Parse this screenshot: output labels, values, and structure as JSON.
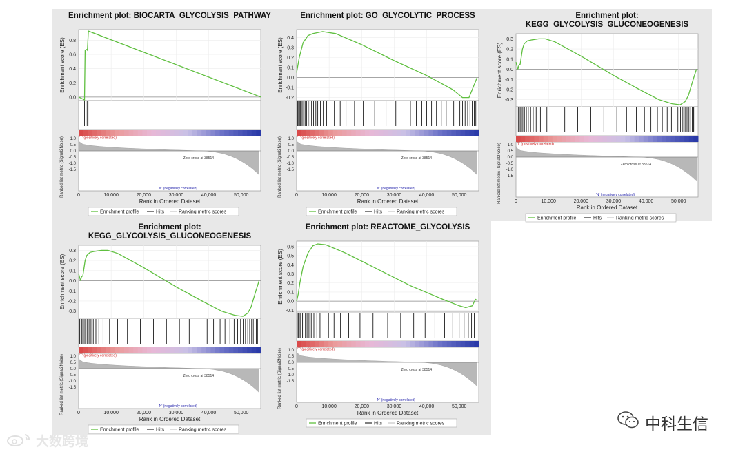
{
  "common": {
    "xlabel": "Rank in Ordered Dataset",
    "ylabel_top": "Enrichment score (ES)",
    "ylabel_bottom": "Ranked list metric (Signal2Noise)",
    "pos_label": "'T' (positively correlated)",
    "neg_label": "'N' (negatively correlated)",
    "zero_cross": "Zero cross at 38514",
    "xticks": [
      "0",
      "10,000",
      "20,000",
      "30,000",
      "40,000",
      "50,000"
    ],
    "ytick_metric": [
      "1.0",
      "0.5",
      "0.0",
      "-0.5",
      "-1.0",
      "-1.5"
    ],
    "legend": [
      "Enrichment profile",
      "Hits",
      "Ranking metric scores"
    ],
    "colors": {
      "es_line": "#5fbf3f",
      "hits": "#000000",
      "metric": "#b8b8b8",
      "pos": "#cc2222",
      "neg": "#2222aa"
    }
  },
  "watermark": {
    "right": "中科生信",
    "left": "大数跨境"
  },
  "chart_data": [
    {
      "type": "line",
      "title_lines": [
        "Enrichment plot: BIOCARTA_GLYCOLYSIS_PATHWAY"
      ],
      "xlabel": "Rank in Ordered Dataset",
      "ylabel": "Enrichment score (ES)",
      "xlim": [
        0,
        56000
      ],
      "yticks": [
        "0.8",
        "0.6",
        "0.4",
        "0.2",
        "0.0"
      ],
      "ylim": [
        -0.05,
        0.95
      ],
      "es_x": [
        0,
        1800,
        2000,
        2500,
        2700,
        3000,
        56000
      ],
      "es_y": [
        0,
        -0.04,
        0.66,
        0.67,
        0.66,
        0.93,
        0
      ],
      "hits": [
        1800,
        2600,
        2900
      ]
    },
    {
      "type": "line",
      "title_lines": [
        "Enrichment plot: GO_GLYCOLYTIC_PROCESS"
      ],
      "xlabel": "Rank in Ordered Dataset",
      "ylabel": "Enrichment score (ES)",
      "xlim": [
        0,
        56000
      ],
      "yticks": [
        "0.4",
        "0.3",
        "0.2",
        "0.1",
        "0.0",
        "-0.1",
        "-0.2"
      ],
      "ylim": [
        -0.23,
        0.48
      ],
      "es_x": [
        0,
        800,
        2000,
        3500,
        5000,
        8000,
        12000,
        20000,
        30000,
        40000,
        48000,
        51000,
        53000,
        54500,
        55500
      ],
      "es_y": [
        0.05,
        0.2,
        0.35,
        0.42,
        0.44,
        0.46,
        0.44,
        0.33,
        0.17,
        0.02,
        -0.12,
        -0.2,
        -0.2,
        -0.08,
        0
      ],
      "hits": [
        300,
        600,
        900,
        1200,
        1500,
        1900,
        2300,
        2700,
        3100,
        3600,
        4100,
        4600,
        5200,
        5900,
        6500,
        7300,
        8200,
        9200,
        10300,
        11600,
        13400,
        15200,
        17800,
        20500,
        24000,
        27500,
        30500,
        33000,
        35000,
        36800,
        38500,
        40000,
        41500,
        43000,
        44500,
        46000,
        47200,
        48300,
        49300,
        50200,
        51000,
        51800,
        52600,
        53300,
        54000,
        54600,
        55100
      ]
    },
    {
      "type": "line",
      "title_lines": [
        "Enrichment plot:",
        "KEGG_GLYCOLYSIS_GLUCONEOGENESIS"
      ],
      "xlabel": "Rank in Ordered Dataset",
      "ylabel": "Enrichment score (ES)",
      "xlim": [
        0,
        56000
      ],
      "yticks": [
        "0.3",
        "0.2",
        "0.1",
        "0.0",
        "-0.1",
        "-0.2",
        "-0.3"
      ],
      "ylim": [
        -0.37,
        0.35
      ],
      "es_x": [
        0,
        600,
        900,
        1300,
        2000,
        2500,
        3500,
        5000,
        7000,
        9000,
        12000,
        20000,
        30000,
        38000,
        44000,
        48000,
        50500,
        52000,
        53000,
        54500,
        55500
      ],
      "es_y": [
        0.07,
        0.0,
        0.04,
        0.05,
        0.2,
        0.25,
        0.28,
        0.29,
        0.3,
        0.3,
        0.27,
        0.13,
        -0.06,
        -0.2,
        -0.3,
        -0.34,
        -0.35,
        -0.32,
        -0.26,
        -0.1,
        0
      ],
      "hits": [
        300,
        700,
        1000,
        1300,
        1700,
        2100,
        2600,
        3200,
        3800,
        4500,
        5300,
        6200,
        7500,
        9500,
        12000,
        15000,
        19000,
        23000,
        27000,
        31000,
        34000,
        37000,
        39500,
        41500,
        43500,
        45000,
        46500,
        47800,
        48900,
        49800,
        50600,
        51300,
        52000,
        52600,
        53200,
        53700,
        54200,
        54600,
        55000
      ]
    },
    {
      "type": "line",
      "title_lines": [
        "Enrichment plot:",
        "KEGG_GLYCOLYSIS_GLUCONEOGENESIS"
      ],
      "xlabel": "Rank in Ordered Dataset",
      "ylabel": "Enrichment score (ES)",
      "xlim": [
        0,
        56000
      ],
      "yticks": [
        "0.3",
        "0.2",
        "0.1",
        "0.0",
        "-0.1",
        "-0.2",
        "-0.3"
      ],
      "ylim": [
        -0.37,
        0.35
      ],
      "es_x": [
        0,
        600,
        900,
        1300,
        2000,
        2500,
        3500,
        5000,
        7000,
        9000,
        12000,
        20000,
        30000,
        38000,
        44000,
        48000,
        50500,
        52000,
        53000,
        54500,
        55500
      ],
      "es_y": [
        0.07,
        0.0,
        0.04,
        0.05,
        0.2,
        0.25,
        0.28,
        0.29,
        0.3,
        0.3,
        0.27,
        0.13,
        -0.06,
        -0.2,
        -0.3,
        -0.34,
        -0.35,
        -0.32,
        -0.26,
        -0.1,
        0
      ],
      "hits": [
        300,
        700,
        1000,
        1300,
        1700,
        2100,
        2600,
        3200,
        3800,
        4500,
        5300,
        6200,
        7500,
        9500,
        12000,
        15000,
        19000,
        23000,
        27000,
        31000,
        34000,
        37000,
        39500,
        41500,
        43500,
        45000,
        46500,
        47800,
        48900,
        49800,
        50600,
        51300,
        52000,
        52600,
        53200,
        53700,
        54200,
        54600,
        55000
      ]
    },
    {
      "type": "line",
      "title_lines": [
        "Enrichment plot: REACTOME_GLYCOLYSIS"
      ],
      "xlabel": "Rank in Ordered Dataset",
      "ylabel": "Enrichment score (ES)",
      "xlim": [
        0,
        56000
      ],
      "yticks": [
        "0.6",
        "0.5",
        "0.4",
        "0.3",
        "0.2",
        "0.1",
        "0.0",
        "-0.1"
      ],
      "ylim": [
        -0.12,
        0.66
      ],
      "es_x": [
        0,
        500,
        1000,
        2000,
        3500,
        5000,
        6500,
        9000,
        15000,
        25000,
        35000,
        45000,
        50000,
        52000,
        54000,
        55000,
        55500
      ],
      "es_y": [
        0.0,
        0.08,
        0.2,
        0.38,
        0.53,
        0.61,
        0.63,
        0.62,
        0.53,
        0.35,
        0.17,
        0.02,
        -0.05,
        -0.07,
        -0.05,
        0.02,
        0.01
      ],
      "hits": [
        200,
        500,
        800,
        1100,
        1400,
        1800,
        2200,
        2700,
        3200,
        3800,
        4500,
        5300,
        6200,
        7200,
        8400,
        9800,
        11500,
        13500,
        16000,
        19500,
        23500,
        28000,
        32000,
        36000,
        39500,
        42500,
        45500,
        48000,
        50000,
        51500,
        52800,
        53800,
        54600
      ]
    }
  ]
}
